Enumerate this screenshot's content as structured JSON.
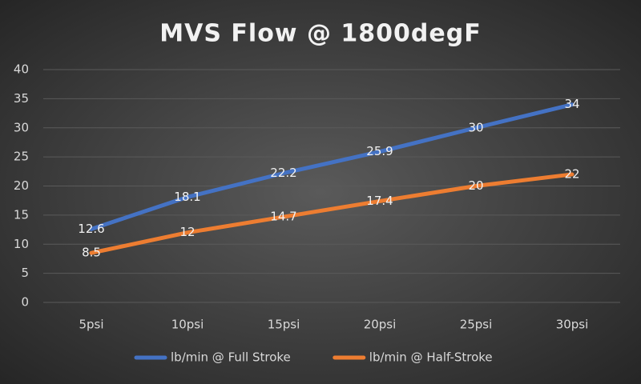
{
  "chart_data": {
    "type": "line",
    "title": "MVS Flow @ 1800degF",
    "categories": [
      "5psi",
      "10psi",
      "15psi",
      "20psi",
      "25psi",
      "30psi"
    ],
    "series": [
      {
        "name": "lb/min @ Full Stroke",
        "color": "#4472c4",
        "values": [
          12.6,
          18.1,
          22.2,
          25.9,
          30,
          34
        ]
      },
      {
        "name": "lb/min @ Half-Stroke",
        "color": "#ed7d31",
        "values": [
          8.5,
          12,
          14.7,
          17.4,
          20,
          22
        ]
      }
    ],
    "ylim": [
      0,
      40
    ],
    "yticks": [
      0,
      5,
      10,
      15,
      20,
      25,
      30,
      35,
      40
    ],
    "grid": true,
    "legend": "bottom",
    "data_labels": true
  }
}
